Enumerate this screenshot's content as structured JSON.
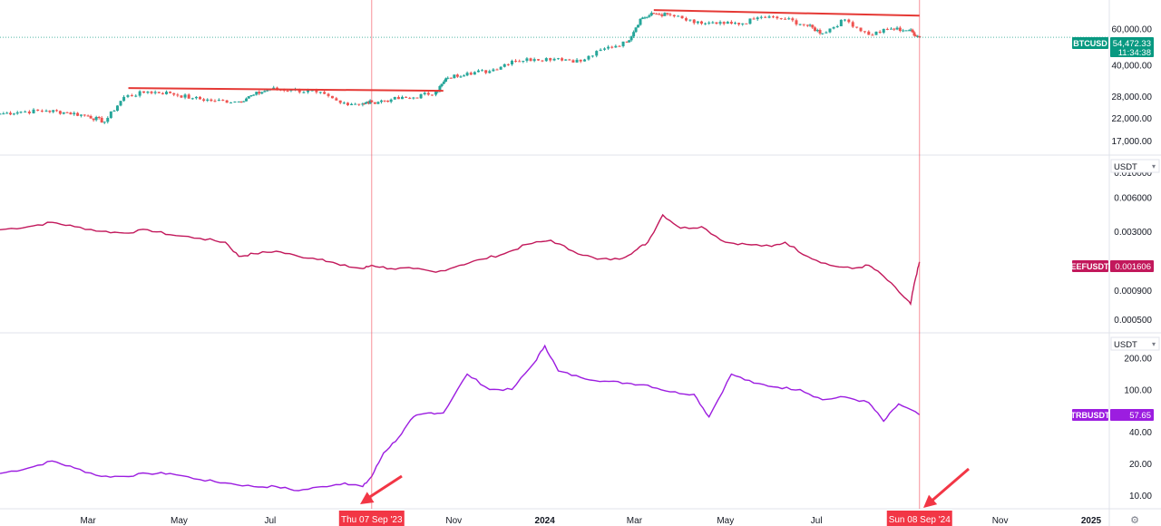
{
  "colors": {
    "btc_up": "#26a69a",
    "btc_down": "#ef5350",
    "btc_badge": "#089981",
    "reef": "#c2185b",
    "trb": "#9c1de0",
    "marker_red": "#f23645",
    "trend_red": "#e53935",
    "grid": "#e0e3eb",
    "axis_text": "#131722"
  },
  "x_axis": {
    "labels": [
      {
        "text": "Mar",
        "date": "2023-03-01"
      },
      {
        "text": "May",
        "date": "2023-05-01"
      },
      {
        "text": "Jul",
        "date": "2023-07-01"
      },
      {
        "text": "Nov",
        "date": "2023-11-01"
      },
      {
        "text": "2024",
        "date": "2024-01-01",
        "bold": true
      },
      {
        "text": "Mar",
        "date": "2024-03-01"
      },
      {
        "text": "May",
        "date": "2024-05-01"
      },
      {
        "text": "Jul",
        "date": "2024-07-01"
      },
      {
        "text": "Nov",
        "date": "2024-11-01"
      },
      {
        "text": "2025",
        "date": "2025-01-01",
        "bold": true
      }
    ],
    "markers": [
      {
        "text": "Thu 07 Sep '23",
        "date": "2023-09-07"
      },
      {
        "text": "Sun 08 Sep '24",
        "date": "2024-09-08"
      }
    ]
  },
  "chart_data": [
    {
      "type": "candlestick",
      "symbol": "BTCUSD",
      "last_value": "54,472.33",
      "countdown": "11:34:38",
      "scale": "log",
      "ylim": [
        15500,
        78000
      ],
      "y_ticks": [
        "60,000.00",
        "40,000.00",
        "28,000.00",
        "22,000.00",
        "17,000.00"
      ],
      "y_tick_values": [
        60000,
        40000,
        28000,
        22000,
        17000
      ],
      "x": [
        "2023-01-01",
        "2023-01-15",
        "2023-02-01",
        "2023-02-15",
        "2023-03-01",
        "2023-03-12",
        "2023-03-25",
        "2023-04-10",
        "2023-04-25",
        "2023-05-10",
        "2023-05-25",
        "2023-06-10",
        "2023-06-20",
        "2023-07-01",
        "2023-07-15",
        "2023-08-01",
        "2023-08-17",
        "2023-09-01",
        "2023-09-07",
        "2023-09-20",
        "2023-10-05",
        "2023-10-20",
        "2023-10-28",
        "2023-11-10",
        "2023-11-25",
        "2023-12-10",
        "2023-12-25",
        "2024-01-10",
        "2024-01-25",
        "2024-02-10",
        "2024-02-25",
        "2024-03-05",
        "2024-03-14",
        "2024-03-25",
        "2024-04-10",
        "2024-04-25",
        "2024-05-10",
        "2024-05-25",
        "2024-06-10",
        "2024-06-25",
        "2024-07-05",
        "2024-07-20",
        "2024-08-05",
        "2024-08-20",
        "2024-09-01",
        "2024-09-08"
      ],
      "close": [
        23000,
        23500,
        23800,
        23300,
        22400,
        21000,
        27800,
        29500,
        29000,
        27400,
        26600,
        26400,
        28500,
        30400,
        30100,
        29300,
        26000,
        25800,
        26200,
        27000,
        27600,
        29500,
        34500,
        36500,
        37200,
        41800,
        42600,
        43000,
        41500,
        48000,
        51500,
        67000,
        71000,
        70000,
        64000,
        63500,
        63000,
        68500,
        67000,
        62000,
        57000,
        66500,
        56000,
        60000,
        59000,
        54472
      ],
      "trendlines": [
        {
          "from": [
            "2023-03-28",
            30700
          ],
          "to": [
            "2023-10-25",
            29800
          ]
        },
        {
          "from": [
            "2024-03-14",
            74000
          ],
          "to": [
            "2024-09-08",
            69500
          ]
        }
      ]
    },
    {
      "type": "line",
      "symbol": "REEFUSDT.P",
      "last_value": "0.001606",
      "unit_menu": "USDT",
      "scale": "log",
      "ylim": [
        0.00043,
        0.0125
      ],
      "y_ticks": [
        "0.010000",
        "0.006000",
        "0.003000",
        "0.000900",
        "0.000500"
      ],
      "y_tick_values": [
        0.01,
        0.006,
        0.003,
        0.0009,
        0.0005
      ],
      "x": [
        "2023-01-01",
        "2023-01-20",
        "2023-02-05",
        "2023-02-20",
        "2023-03-10",
        "2023-03-25",
        "2023-04-10",
        "2023-04-25",
        "2023-05-15",
        "2023-06-01",
        "2023-06-10",
        "2023-06-20",
        "2023-07-05",
        "2023-07-20",
        "2023-08-05",
        "2023-08-17",
        "2023-09-01",
        "2023-09-07",
        "2023-09-20",
        "2023-10-05",
        "2023-10-20",
        "2023-11-05",
        "2023-11-20",
        "2023-12-05",
        "2023-12-20",
        "2024-01-05",
        "2024-01-20",
        "2024-02-05",
        "2024-02-20",
        "2024-03-01",
        "2024-03-10",
        "2024-03-20",
        "2024-04-01",
        "2024-04-15",
        "2024-05-01",
        "2024-05-15",
        "2024-06-01",
        "2024-06-10",
        "2024-06-25",
        "2024-07-10",
        "2024-07-25",
        "2024-08-05",
        "2024-08-15",
        "2024-08-28",
        "2024-09-02",
        "2024-09-05",
        "2024-09-08"
      ],
      "values": [
        0.0031,
        0.0033,
        0.0036,
        0.0033,
        0.003,
        0.0029,
        0.0031,
        0.0028,
        0.0026,
        0.0024,
        0.0018,
        0.0019,
        0.002,
        0.0018,
        0.0017,
        0.0015,
        0.0014,
        0.0015,
        0.0014,
        0.0014,
        0.0013,
        0.0015,
        0.0017,
        0.0019,
        0.0023,
        0.0025,
        0.002,
        0.0017,
        0.0017,
        0.002,
        0.0024,
        0.0042,
        0.0032,
        0.0033,
        0.0024,
        0.0023,
        0.0022,
        0.0024,
        0.0018,
        0.0015,
        0.0014,
        0.0015,
        0.0012,
        0.0008,
        0.00068,
        0.0011,
        0.001606
      ]
    },
    {
      "type": "line",
      "symbol": "TRBUSDT",
      "last_value": "57.65",
      "unit_menu": "USDT",
      "scale": "log",
      "ylim": [
        8.5,
        300
      ],
      "y_ticks": [
        "200.00",
        "100.00",
        "40.00",
        "20.00",
        "10.00"
      ],
      "y_tick_values": [
        200,
        100,
        40,
        20,
        10
      ],
      "x": [
        "2023-01-01",
        "2023-01-20",
        "2023-02-05",
        "2023-02-20",
        "2023-03-10",
        "2023-03-25",
        "2023-04-10",
        "2023-04-25",
        "2023-05-15",
        "2023-06-01",
        "2023-06-20",
        "2023-07-05",
        "2023-07-20",
        "2023-08-05",
        "2023-08-20",
        "2023-09-01",
        "2023-09-07",
        "2023-09-15",
        "2023-09-25",
        "2023-10-05",
        "2023-10-15",
        "2023-10-25",
        "2023-11-10",
        "2023-11-25",
        "2023-12-10",
        "2023-12-25",
        "2024-01-01",
        "2024-01-10",
        "2024-01-25",
        "2024-02-10",
        "2024-02-25",
        "2024-03-10",
        "2024-03-25",
        "2024-04-10",
        "2024-04-20",
        "2024-05-05",
        "2024-05-20",
        "2024-06-05",
        "2024-06-20",
        "2024-07-05",
        "2024-07-20",
        "2024-08-05",
        "2024-08-15",
        "2024-08-25",
        "2024-09-08"
      ],
      "values": [
        16,
        18,
        21,
        18,
        15,
        15,
        16,
        16,
        14,
        13,
        12,
        12,
        11,
        12,
        13,
        12,
        15,
        25,
        35,
        55,
        60,
        60,
        140,
        100,
        100,
        180,
        260,
        150,
        130,
        120,
        115,
        110,
        95,
        90,
        55,
        140,
        115,
        105,
        100,
        80,
        85,
        75,
        50,
        73,
        57.65
      ]
    }
  ]
}
